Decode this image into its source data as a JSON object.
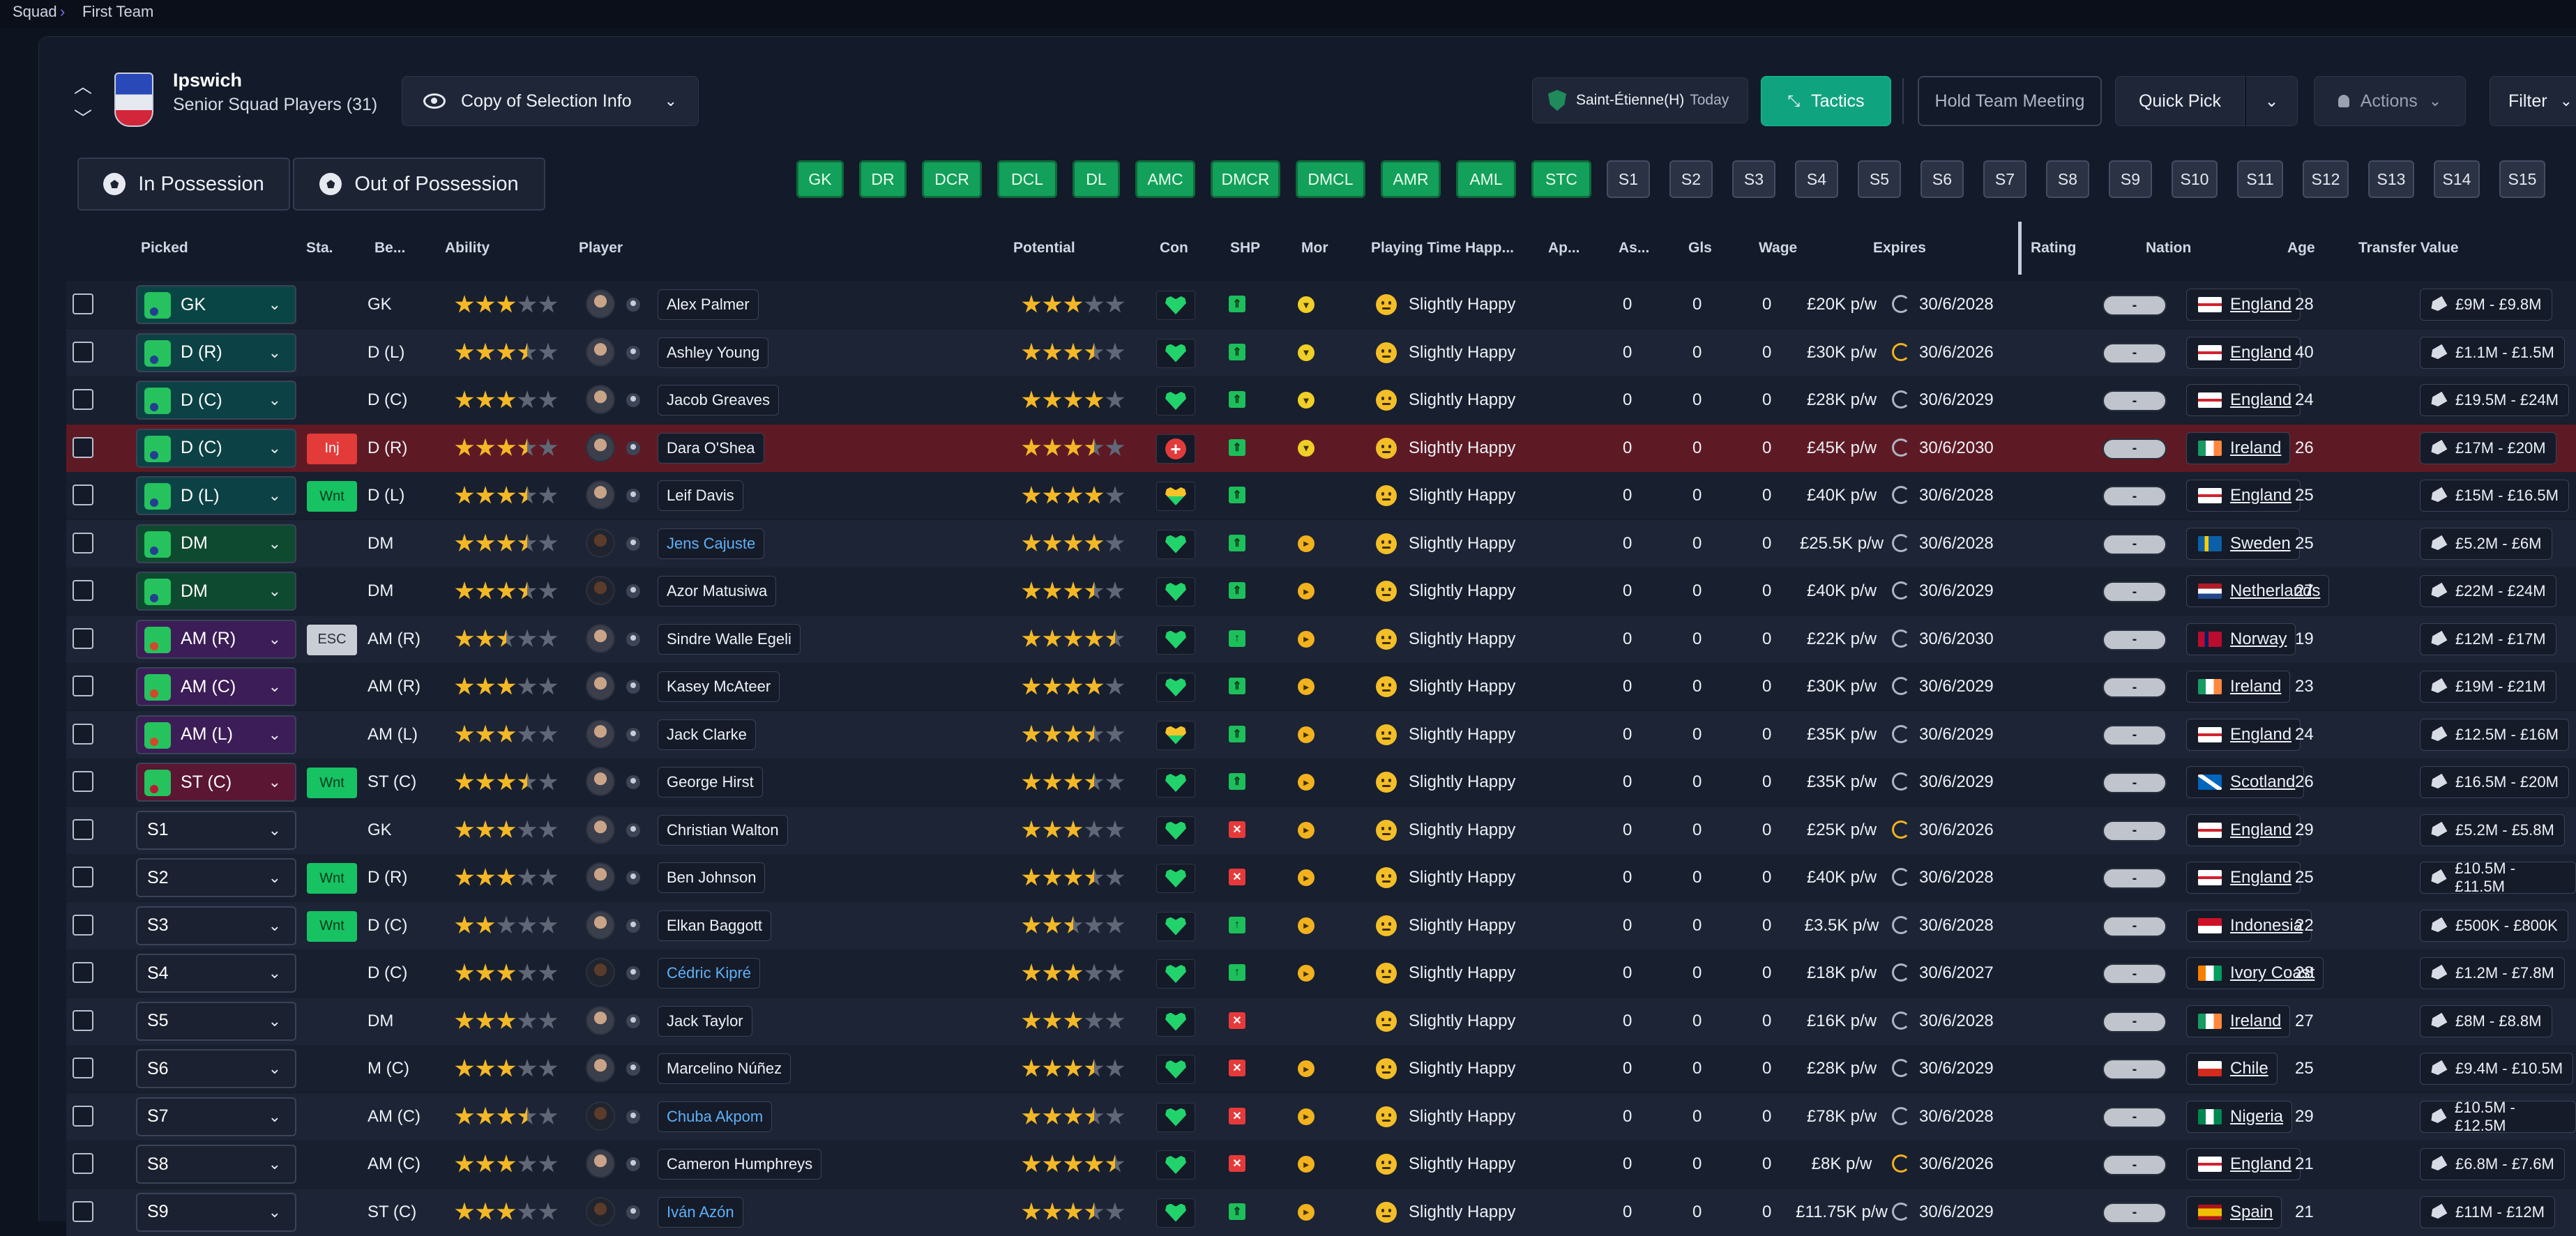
{
  "breadcrumb": {
    "root": "Squad",
    "current": "First Team"
  },
  "club": {
    "name": "Ipswich",
    "subtitle": "Senior Squad Players (31)"
  },
  "toolbar": {
    "selection_label": "Copy of Selection Info",
    "fixture_label": "Saint-Étienne(H)",
    "fixture_when": "Today",
    "tactics_label": "Tactics",
    "meeting_label": "Hold Team Meeting",
    "quick_pick_label": "Quick Pick",
    "actions_label": "Actions",
    "filter_label": "Filter"
  },
  "possession_tabs": {
    "in": "In Possession",
    "out": "Out of Possession"
  },
  "position_chips": [
    "GK",
    "DR",
    "DCR",
    "DCL",
    "DL",
    "AMC",
    "DMCR",
    "DMCL",
    "AMR",
    "AML",
    "STC"
  ],
  "sub_chips": [
    "S1",
    "S2",
    "S3",
    "S4",
    "S5",
    "S6",
    "S7",
    "S8",
    "S9",
    "S10",
    "S11",
    "S12",
    "S13",
    "S14",
    "S15"
  ],
  "columns": {
    "picked": "Picked",
    "status": "Sta.",
    "best": "Be...",
    "ability": "Ability",
    "player": "Player",
    "potential": "Potential",
    "con": "Con",
    "shp": "SHP",
    "mor": "Mor",
    "happiness": "Playing Time Happ...",
    "apps": "Ap...",
    "assists": "As...",
    "goals": "Gls",
    "wage": "Wage",
    "expires": "Expires",
    "rating": "Rating",
    "nation": "Nation",
    "age": "Age",
    "transfer_value": "Transfer Value"
  },
  "colors": {
    "accent_teal": "#10a37f",
    "chip_green": "#13a05a",
    "injury_row": "#5e1a24",
    "loan_link": "#5fb0f5",
    "star": "#f4b827"
  },
  "players": [
    {
      "picked": "GK",
      "kind": "gk",
      "status": "",
      "best": "GK",
      "ability": 3,
      "name": "Alex Palmer",
      "loan": false,
      "potential": 3,
      "con": "heart",
      "shp": "up2",
      "mor": "up",
      "happiness": "Slightly Happy",
      "apps": "0",
      "assists": "0",
      "goals": "0",
      "wage": "£20K p/w",
      "expires": "30/6/2028",
      "expires_warn": false,
      "rating": "-",
      "nation": "England",
      "flag": "eng",
      "age": "28",
      "value": "£9M - £9.8M"
    },
    {
      "picked": "D (R)",
      "kind": "def",
      "status": "",
      "best": "D (L)",
      "ability": 3.5,
      "name": "Ashley Young",
      "loan": false,
      "potential": 3.5,
      "con": "heart",
      "shp": "up2",
      "mor": "up",
      "happiness": "Slightly Happy",
      "apps": "0",
      "assists": "0",
      "goals": "0",
      "wage": "£30K p/w",
      "expires": "30/6/2026",
      "expires_warn": true,
      "rating": "-",
      "nation": "England",
      "flag": "eng",
      "age": "40",
      "value": "£1.1M - £1.5M"
    },
    {
      "picked": "D (C)",
      "kind": "def",
      "status": "",
      "best": "D (C)",
      "ability": 3,
      "name": "Jacob Greaves",
      "loan": false,
      "potential": 4,
      "con": "heart",
      "shp": "up2",
      "mor": "up",
      "happiness": "Slightly Happy",
      "apps": "0",
      "assists": "0",
      "goals": "0",
      "wage": "£28K p/w",
      "expires": "30/6/2029",
      "expires_warn": false,
      "rating": "-",
      "nation": "England",
      "flag": "eng",
      "age": "24",
      "value": "£19.5M - £24M"
    },
    {
      "picked": "D (C)",
      "kind": "def",
      "status": "Inj",
      "best": "D (R)",
      "ability": 3.5,
      "name": "Dara O'Shea",
      "loan": false,
      "potential": 3.5,
      "con": "plus",
      "shp": "up2",
      "mor": "up",
      "happiness": "Slightly Happy",
      "apps": "0",
      "assists": "0",
      "goals": "0",
      "wage": "£45K p/w",
      "expires": "30/6/2030",
      "expires_warn": false,
      "rating": "-",
      "nation": "Ireland",
      "flag": "irl",
      "age": "26",
      "value": "£17M - £20M"
    },
    {
      "picked": "D (L)",
      "kind": "def",
      "status": "Wnt",
      "best": "D (L)",
      "ability": 3.5,
      "name": "Leif Davis",
      "loan": false,
      "potential": 4,
      "con": "hearty",
      "shp": "up2",
      "mor": "",
      "happiness": "Slightly Happy",
      "apps": "0",
      "assists": "0",
      "goals": "0",
      "wage": "£40K p/w",
      "expires": "30/6/2028",
      "expires_warn": false,
      "rating": "-",
      "nation": "England",
      "flag": "eng",
      "age": "25",
      "value": "£15M - £16.5M"
    },
    {
      "picked": "DM",
      "kind": "mid",
      "status": "",
      "best": "DM",
      "ability": 3.5,
      "name": "Jens Cajuste",
      "loan": true,
      "potential": 4,
      "con": "heart",
      "shp": "up2",
      "mor": "side",
      "happiness": "Slightly Happy",
      "apps": "0",
      "assists": "0",
      "goals": "0",
      "wage": "£25.5K p/w",
      "expires": "30/6/2028",
      "expires_warn": false,
      "rating": "-",
      "nation": "Sweden",
      "flag": "swe",
      "age": "25",
      "value": "£5.2M - £6M"
    },
    {
      "picked": "DM",
      "kind": "mid",
      "status": "",
      "best": "DM",
      "ability": 3.5,
      "name": "Azor Matusiwa",
      "loan": false,
      "potential": 3.5,
      "con": "heart",
      "shp": "up2",
      "mor": "side",
      "happiness": "Slightly Happy",
      "apps": "0",
      "assists": "0",
      "goals": "0",
      "wage": "£40K p/w",
      "expires": "30/6/2029",
      "expires_warn": false,
      "rating": "-",
      "nation": "Netherlands",
      "flag": "ned",
      "age": "27",
      "value": "£22M - £24M"
    },
    {
      "picked": "AM (R)",
      "kind": "amr",
      "status": "ESC",
      "best": "AM (R)",
      "ability": 2.5,
      "name": "Sindre Walle Egeli",
      "loan": false,
      "potential": 4.5,
      "con": "heart",
      "shp": "up1",
      "mor": "side",
      "happiness": "Slightly Happy",
      "apps": "0",
      "assists": "0",
      "goals": "0",
      "wage": "£22K p/w",
      "expires": "30/6/2030",
      "expires_warn": false,
      "rating": "-",
      "nation": "Norway",
      "flag": "nor",
      "age": "19",
      "value": "£12M - £17M"
    },
    {
      "picked": "AM (C)",
      "kind": "amr",
      "status": "",
      "best": "AM (R)",
      "ability": 3,
      "name": "Kasey McAteer",
      "loan": false,
      "potential": 4,
      "con": "heart",
      "shp": "up2",
      "mor": "side",
      "happiness": "Slightly Happy",
      "apps": "0",
      "assists": "0",
      "goals": "0",
      "wage": "£30K p/w",
      "expires": "30/6/2029",
      "expires_warn": false,
      "rating": "-",
      "nation": "Ireland",
      "flag": "irl",
      "age": "23",
      "value": "£19M - £21M"
    },
    {
      "picked": "AM (L)",
      "kind": "amr",
      "status": "",
      "best": "AM (L)",
      "ability": 3,
      "name": "Jack Clarke",
      "loan": false,
      "potential": 3.5,
      "con": "hearty",
      "shp": "up2",
      "mor": "side",
      "happiness": "Slightly Happy",
      "apps": "0",
      "assists": "0",
      "goals": "0",
      "wage": "£35K p/w",
      "expires": "30/6/2029",
      "expires_warn": false,
      "rating": "-",
      "nation": "England",
      "flag": "eng",
      "age": "24",
      "value": "£12.5M - £16M"
    },
    {
      "picked": "ST (C)",
      "kind": "str",
      "status": "Wnt",
      "best": "ST (C)",
      "ability": 3.5,
      "name": "George Hirst",
      "loan": false,
      "potential": 3.5,
      "con": "heart",
      "shp": "up2",
      "mor": "side",
      "happiness": "Slightly Happy",
      "apps": "0",
      "assists": "0",
      "goals": "0",
      "wage": "£35K p/w",
      "expires": "30/6/2029",
      "expires_warn": false,
      "rating": "-",
      "nation": "Scotland",
      "flag": "sco",
      "age": "26",
      "value": "£16.5M - £20M"
    },
    {
      "picked": "S1",
      "kind": "sub",
      "status": "",
      "best": "GK",
      "ability": 3,
      "name": "Christian Walton",
      "loan": false,
      "potential": 3,
      "con": "heart",
      "shp": "x",
      "mor": "side",
      "happiness": "Slightly Happy",
      "apps": "0",
      "assists": "0",
      "goals": "0",
      "wage": "£25K p/w",
      "expires": "30/6/2026",
      "expires_warn": true,
      "rating": "-",
      "nation": "England",
      "flag": "eng",
      "age": "29",
      "value": "£5.2M - £5.8M"
    },
    {
      "picked": "S2",
      "kind": "sub",
      "status": "Wnt",
      "best": "D (R)",
      "ability": 3,
      "name": "Ben Johnson",
      "loan": false,
      "potential": 3.5,
      "con": "heart",
      "shp": "x",
      "mor": "side",
      "happiness": "Slightly Happy",
      "apps": "0",
      "assists": "0",
      "goals": "0",
      "wage": "£40K p/w",
      "expires": "30/6/2028",
      "expires_warn": false,
      "rating": "-",
      "nation": "England",
      "flag": "eng",
      "age": "25",
      "value": "£10.5M - £11.5M"
    },
    {
      "picked": "S3",
      "kind": "sub",
      "status": "Wnt",
      "best": "D (C)",
      "ability": 2,
      "name": "Elkan Baggott",
      "loan": false,
      "potential": 2.5,
      "con": "heart",
      "shp": "up1",
      "mor": "side",
      "happiness": "Slightly Happy",
      "apps": "0",
      "assists": "0",
      "goals": "0",
      "wage": "£3.5K p/w",
      "expires": "30/6/2028",
      "expires_warn": false,
      "rating": "-",
      "nation": "Indonesia",
      "flag": "idn",
      "age": "22",
      "value": "£500K - £800K"
    },
    {
      "picked": "S4",
      "kind": "sub",
      "status": "",
      "best": "D (C)",
      "ability": 3,
      "name": "Cédric Kipré",
      "loan": true,
      "potential": 3,
      "con": "heart",
      "shp": "up1",
      "mor": "side",
      "happiness": "Slightly Happy",
      "apps": "0",
      "assists": "0",
      "goals": "0",
      "wage": "£18K p/w",
      "expires": "30/6/2027",
      "expires_warn": false,
      "rating": "-",
      "nation": "Ivory Coast",
      "flag": "civ",
      "age": "28",
      "value": "£1.2M - £7.8M"
    },
    {
      "picked": "S5",
      "kind": "sub",
      "status": "",
      "best": "DM",
      "ability": 3,
      "name": "Jack Taylor",
      "loan": false,
      "potential": 3,
      "con": "heart",
      "shp": "x",
      "mor": "",
      "happiness": "Slightly Happy",
      "apps": "0",
      "assists": "0",
      "goals": "0",
      "wage": "£16K p/w",
      "expires": "30/6/2028",
      "expires_warn": false,
      "rating": "-",
      "nation": "Ireland",
      "flag": "irl",
      "age": "27",
      "value": "£8M - £8.8M"
    },
    {
      "picked": "S6",
      "kind": "sub",
      "status": "",
      "best": "M (C)",
      "ability": 3,
      "name": "Marcelino Núñez",
      "loan": false,
      "potential": 3.5,
      "con": "heart",
      "shp": "x",
      "mor": "side",
      "happiness": "Slightly Happy",
      "apps": "0",
      "assists": "0",
      "goals": "0",
      "wage": "£28K p/w",
      "expires": "30/6/2029",
      "expires_warn": false,
      "rating": "-",
      "nation": "Chile",
      "flag": "chi",
      "age": "25",
      "value": "£9.4M - £10.5M"
    },
    {
      "picked": "S7",
      "kind": "sub",
      "status": "",
      "best": "AM (C)",
      "ability": 3.5,
      "name": "Chuba Akpom",
      "loan": true,
      "potential": 3.5,
      "con": "heart",
      "shp": "x",
      "mor": "side",
      "happiness": "Slightly Happy",
      "apps": "0",
      "assists": "0",
      "goals": "0",
      "wage": "£78K p/w",
      "expires": "30/6/2028",
      "expires_warn": false,
      "rating": "-",
      "nation": "Nigeria",
      "flag": "nga",
      "age": "29",
      "value": "£10.5M - £12.5M"
    },
    {
      "picked": "S8",
      "kind": "sub",
      "status": "",
      "best": "AM (C)",
      "ability": 3,
      "name": "Cameron Humphreys",
      "loan": false,
      "potential": 4.5,
      "con": "heart",
      "shp": "x",
      "mor": "side",
      "happiness": "Slightly Happy",
      "apps": "0",
      "assists": "0",
      "goals": "0",
      "wage": "£8K p/w",
      "expires": "30/6/2026",
      "expires_warn": true,
      "rating": "-",
      "nation": "England",
      "flag": "eng",
      "age": "21",
      "value": "£6.8M - £7.6M"
    },
    {
      "picked": "S9",
      "kind": "sub",
      "status": "",
      "best": "ST (C)",
      "ability": 3,
      "name": "Iván Azón",
      "loan": true,
      "potential": 3.5,
      "con": "heart",
      "shp": "up2",
      "mor": "side",
      "happiness": "Slightly Happy",
      "apps": "0",
      "assists": "0",
      "goals": "0",
      "wage": "£11.75K p/w",
      "expires": "30/6/2029",
      "expires_warn": false,
      "rating": "-",
      "nation": "Spain",
      "flag": "esp",
      "age": "21",
      "value": "£11M - £12M"
    }
  ]
}
